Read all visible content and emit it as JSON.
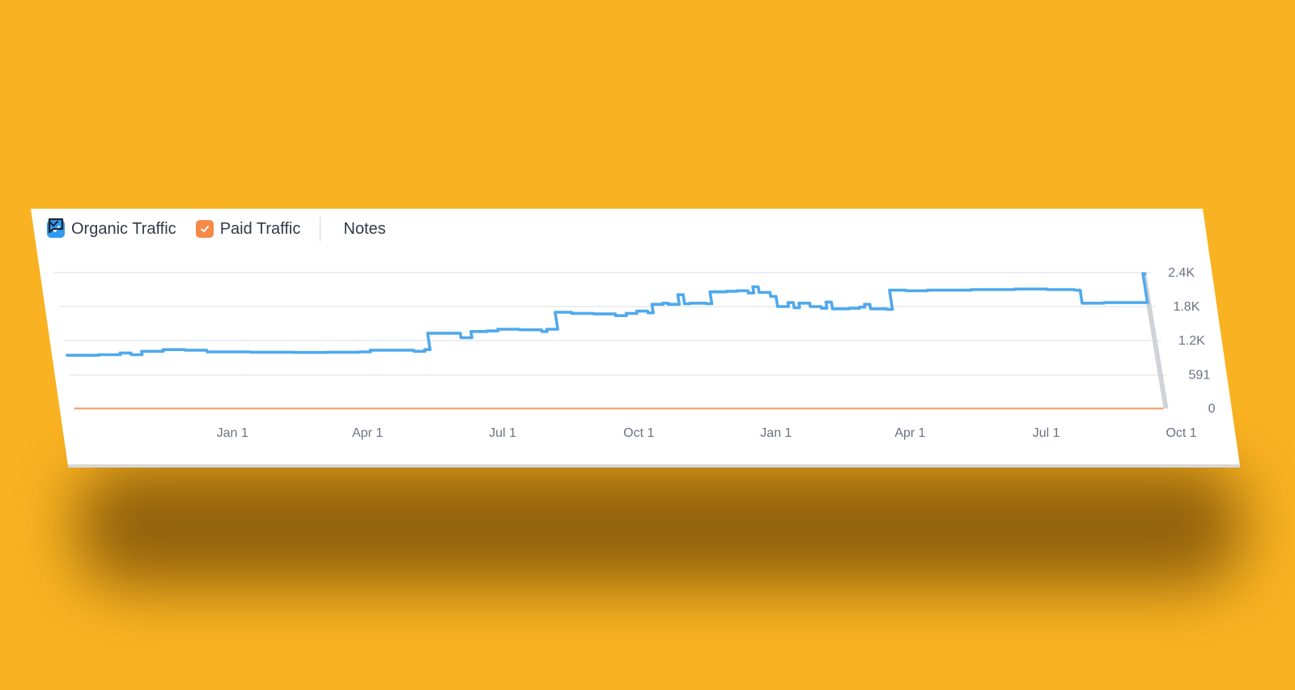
{
  "legend": {
    "organic_label": "Organic Traffic",
    "paid_label": "Paid Traffic",
    "notes_label": "Notes"
  },
  "colors": {
    "background": "#f9b221",
    "organic": "#4fa9ec",
    "paid": "#f4a77a",
    "organic_checkbox": "#2f9bf0",
    "paid_checkbox": "#f58a46"
  },
  "chart_data": {
    "type": "line",
    "title": "",
    "xlabel": "",
    "ylabel": "",
    "x_ticks": [
      "Jan 1",
      "Apr 1",
      "Jul 1",
      "Oct 1",
      "Jan 1",
      "Apr 1",
      "Jul 1",
      "Oct 1"
    ],
    "y_ticks": [
      "0",
      "591",
      "1.2K",
      "1.8K",
      "2.4K"
    ],
    "ylim": [
      0,
      2400
    ],
    "grid": true,
    "legend_position": "top-left",
    "series": [
      {
        "name": "Organic Traffic",
        "color": "#4fa9ec",
        "points": [
          [
            0.0,
            940
          ],
          [
            0.03,
            950
          ],
          [
            0.05,
            980
          ],
          [
            0.06,
            950
          ],
          [
            0.07,
            1010
          ],
          [
            0.09,
            1040
          ],
          [
            0.11,
            1030
          ],
          [
            0.13,
            1000
          ],
          [
            0.17,
            995
          ],
          [
            0.21,
            990
          ],
          [
            0.24,
            995
          ],
          [
            0.27,
            1000
          ],
          [
            0.28,
            1030
          ],
          [
            0.3,
            1030
          ],
          [
            0.32,
            1010
          ],
          [
            0.33,
            1040
          ],
          [
            0.335,
            1330
          ],
          [
            0.35,
            1330
          ],
          [
            0.365,
            1250
          ],
          [
            0.375,
            1360
          ],
          [
            0.39,
            1370
          ],
          [
            0.4,
            1400
          ],
          [
            0.42,
            1390
          ],
          [
            0.44,
            1360
          ],
          [
            0.445,
            1400
          ],
          [
            0.455,
            1700
          ],
          [
            0.47,
            1680
          ],
          [
            0.49,
            1670
          ],
          [
            0.51,
            1640
          ],
          [
            0.52,
            1680
          ],
          [
            0.53,
            1720
          ],
          [
            0.54,
            1690
          ],
          [
            0.545,
            1840
          ],
          [
            0.555,
            1860
          ],
          [
            0.56,
            1840
          ],
          [
            0.57,
            2010
          ],
          [
            0.575,
            1850
          ],
          [
            0.58,
            1860
          ],
          [
            0.595,
            1850
          ],
          [
            0.6,
            2060
          ],
          [
            0.615,
            2070
          ],
          [
            0.625,
            2080
          ],
          [
            0.635,
            2040
          ],
          [
            0.64,
            2150
          ],
          [
            0.645,
            2050
          ],
          [
            0.655,
            1980
          ],
          [
            0.66,
            1800
          ],
          [
            0.67,
            1870
          ],
          [
            0.675,
            1780
          ],
          [
            0.68,
            1860
          ],
          [
            0.69,
            1800
          ],
          [
            0.7,
            1770
          ],
          [
            0.705,
            1880
          ],
          [
            0.71,
            1760
          ],
          [
            0.725,
            1770
          ],
          [
            0.735,
            1790
          ],
          [
            0.74,
            1840
          ],
          [
            0.745,
            1760
          ],
          [
            0.76,
            1750
          ],
          [
            0.765,
            2090
          ],
          [
            0.78,
            2080
          ],
          [
            0.8,
            2090
          ],
          [
            0.84,
            2100
          ],
          [
            0.88,
            2110
          ],
          [
            0.91,
            2100
          ],
          [
            0.935,
            2090
          ],
          [
            0.94,
            1860
          ],
          [
            0.96,
            1870
          ],
          [
            0.99,
            1870
          ],
          [
            1.0,
            1850
          ]
        ]
      },
      {
        "name": "Paid Traffic",
        "color": "#f4a77a",
        "points": [
          [
            0.0,
            0
          ],
          [
            1.0,
            0
          ]
        ]
      }
    ]
  }
}
